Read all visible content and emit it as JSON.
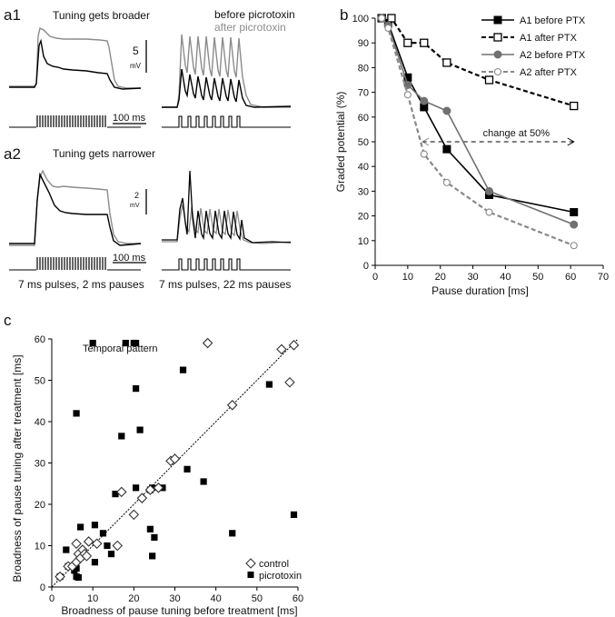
{
  "panels": {
    "a1": {
      "label": "a1",
      "title": "Tuning gets broader",
      "legend_before": "before picrotoxin",
      "legend_after": "after picrotoxin",
      "scale_value": "5",
      "scale_unit": "mV",
      "time_scale": "100 ms"
    },
    "a2": {
      "label": "a2",
      "title": "Tuning gets narrower",
      "scale_value": "2",
      "scale_unit": "mV",
      "time_scale": "100 ms",
      "caption_left": "7 ms pulses, 2 ms pauses",
      "caption_right": "7 ms pulses, 22 ms pauses"
    },
    "b": {
      "label": "b"
    },
    "c": {
      "label": "c"
    }
  },
  "colors": {
    "before": "#000000",
    "after": "#8c8c8c",
    "control": "#555555",
    "a2_after": "#888888"
  },
  "chart_data": [
    {
      "id": "b",
      "type": "line",
      "title": "",
      "xlabel": "Pause duration [ms]",
      "ylabel": "Graded potential (%)",
      "xlim": [
        0,
        70
      ],
      "ylim": [
        0,
        100
      ],
      "xticks": [
        0,
        10,
        20,
        30,
        40,
        50,
        60,
        70
      ],
      "yticks": [
        0,
        10,
        20,
        30,
        40,
        50,
        60,
        70,
        80,
        90,
        100
      ],
      "series": [
        {
          "name": "A1 before PTX",
          "style": "solid",
          "marker": "filled-square",
          "color": "#000000",
          "x": [
            2,
            4,
            10,
            15,
            22,
            35,
            61
          ],
          "y": [
            100,
            98,
            76,
            64,
            47,
            28.5,
            21.5
          ]
        },
        {
          "name": "A1 after PTX",
          "style": "dashed",
          "marker": "open-square",
          "color": "#000000",
          "x": [
            2,
            5,
            10,
            15,
            22,
            35,
            61
          ],
          "y": [
            100,
            100,
            90,
            90,
            82,
            75,
            64.5
          ]
        },
        {
          "name": "A2 before PTX",
          "style": "solid",
          "marker": "filled-circle",
          "color": "#707070",
          "x": [
            2,
            4,
            10,
            15,
            22,
            35,
            61
          ],
          "y": [
            100,
            97,
            73,
            66.5,
            62.5,
            30,
            16.5
          ]
        },
        {
          "name": "A2 after PTX",
          "style": "dashed",
          "marker": "open-circle",
          "color": "#888888",
          "x": [
            2,
            4,
            10,
            15,
            22,
            35,
            61
          ],
          "y": [
            100,
            96,
            69,
            45,
            33.5,
            21.5,
            8
          ]
        }
      ],
      "annotation": {
        "text": "change at 50%",
        "x_start": 61,
        "x_end": 14.5,
        "y": 50
      }
    },
    {
      "id": "c",
      "type": "scatter",
      "title": "Temporal pattern",
      "xlabel": "Broadness of pause tuning before treatment [ms]",
      "ylabel": "Broadness of pause tuning after treatment [ms]",
      "xlim": [
        0,
        60
      ],
      "ylim": [
        0,
        60
      ],
      "xticks": [
        0,
        10,
        20,
        30,
        40,
        50,
        60
      ],
      "yticks": [
        0,
        10,
        20,
        30,
        40,
        50,
        60
      ],
      "diagonal": true,
      "series": [
        {
          "name": "control",
          "marker": "open-diamond",
          "points": [
            [
              2,
              2.5
            ],
            [
              4,
              5
            ],
            [
              5,
              5
            ],
            [
              6,
              6
            ],
            [
              6.5,
              8
            ],
            [
              7,
              7
            ],
            [
              7.5,
              9
            ],
            [
              8,
              8
            ],
            [
              8.5,
              7.5
            ],
            [
              9,
              11
            ],
            [
              6,
              10.5
            ],
            [
              11,
              10.5
            ],
            [
              16,
              10
            ],
            [
              17,
              23
            ],
            [
              20,
              17.5
            ],
            [
              22,
              21.5
            ],
            [
              24,
              23.5
            ],
            [
              26,
              24
            ],
            [
              29,
              30.5
            ],
            [
              30,
              31
            ],
            [
              38,
              59
            ],
            [
              44,
              44
            ],
            [
              56,
              57.5
            ],
            [
              58,
              49.5
            ],
            [
              59,
              58.5
            ]
          ]
        },
        {
          "name": "picrotoxin",
          "marker": "filled-square",
          "points": [
            [
              2,
              2.5
            ],
            [
              3.5,
              9
            ],
            [
              4,
              5
            ],
            [
              5.5,
              4
            ],
            [
              6,
              2.5
            ],
            [
              6,
              4.5
            ],
            [
              6.5,
              2.3
            ],
            [
              6,
              42
            ],
            [
              7,
              14.5
            ],
            [
              10,
              59
            ],
            [
              10.5,
              15
            ],
            [
              10.5,
              6
            ],
            [
              12.5,
              13
            ],
            [
              13.5,
              10
            ],
            [
              14.5,
              8
            ],
            [
              15.5,
              22.5
            ],
            [
              17,
              36.5
            ],
            [
              18,
              59
            ],
            [
              20,
              59
            ],
            [
              20.5,
              59
            ],
            [
              20.5,
              48
            ],
            [
              20.5,
              24
            ],
            [
              21.5,
              38
            ],
            [
              24,
              14
            ],
            [
              24,
              23.5
            ],
            [
              24.5,
              24
            ],
            [
              24.5,
              7.5
            ],
            [
              25,
              12
            ],
            [
              27,
              24
            ],
            [
              32,
              52.5
            ],
            [
              33,
              28.5
            ],
            [
              37,
              25.5
            ],
            [
              44,
              13
            ],
            [
              53,
              49
            ],
            [
              59,
              17.5
            ]
          ]
        }
      ]
    }
  ]
}
